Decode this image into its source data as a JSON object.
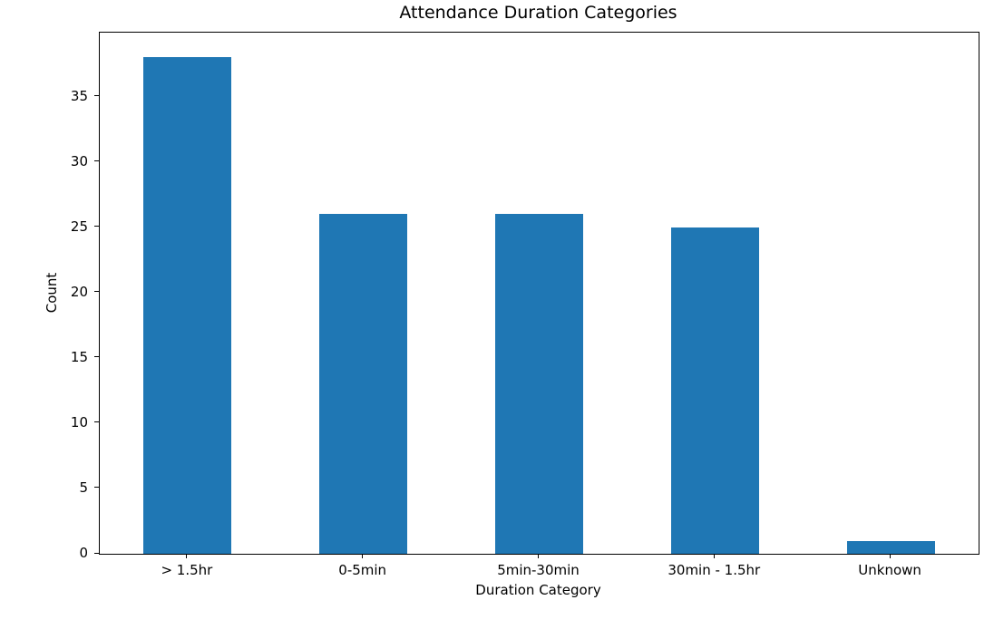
{
  "chart_data": {
    "type": "bar",
    "title": "Attendance Duration Categories",
    "xlabel": "Duration Category",
    "ylabel": "Count",
    "categories": [
      "> 1.5hr",
      "0-5min",
      "5min-30min",
      "30min - 1.5hr",
      "Unknown"
    ],
    "values": [
      38,
      26,
      26,
      25,
      1
    ],
    "yticks": [
      0,
      5,
      10,
      15,
      20,
      25,
      30,
      35
    ],
    "ylim": [
      0,
      39.9
    ],
    "bar_color": "#1f77b4",
    "bar_width_frac": 0.5,
    "grid": false,
    "legend": false,
    "spine_color": "#000000",
    "background_color": "#ffffff"
  }
}
